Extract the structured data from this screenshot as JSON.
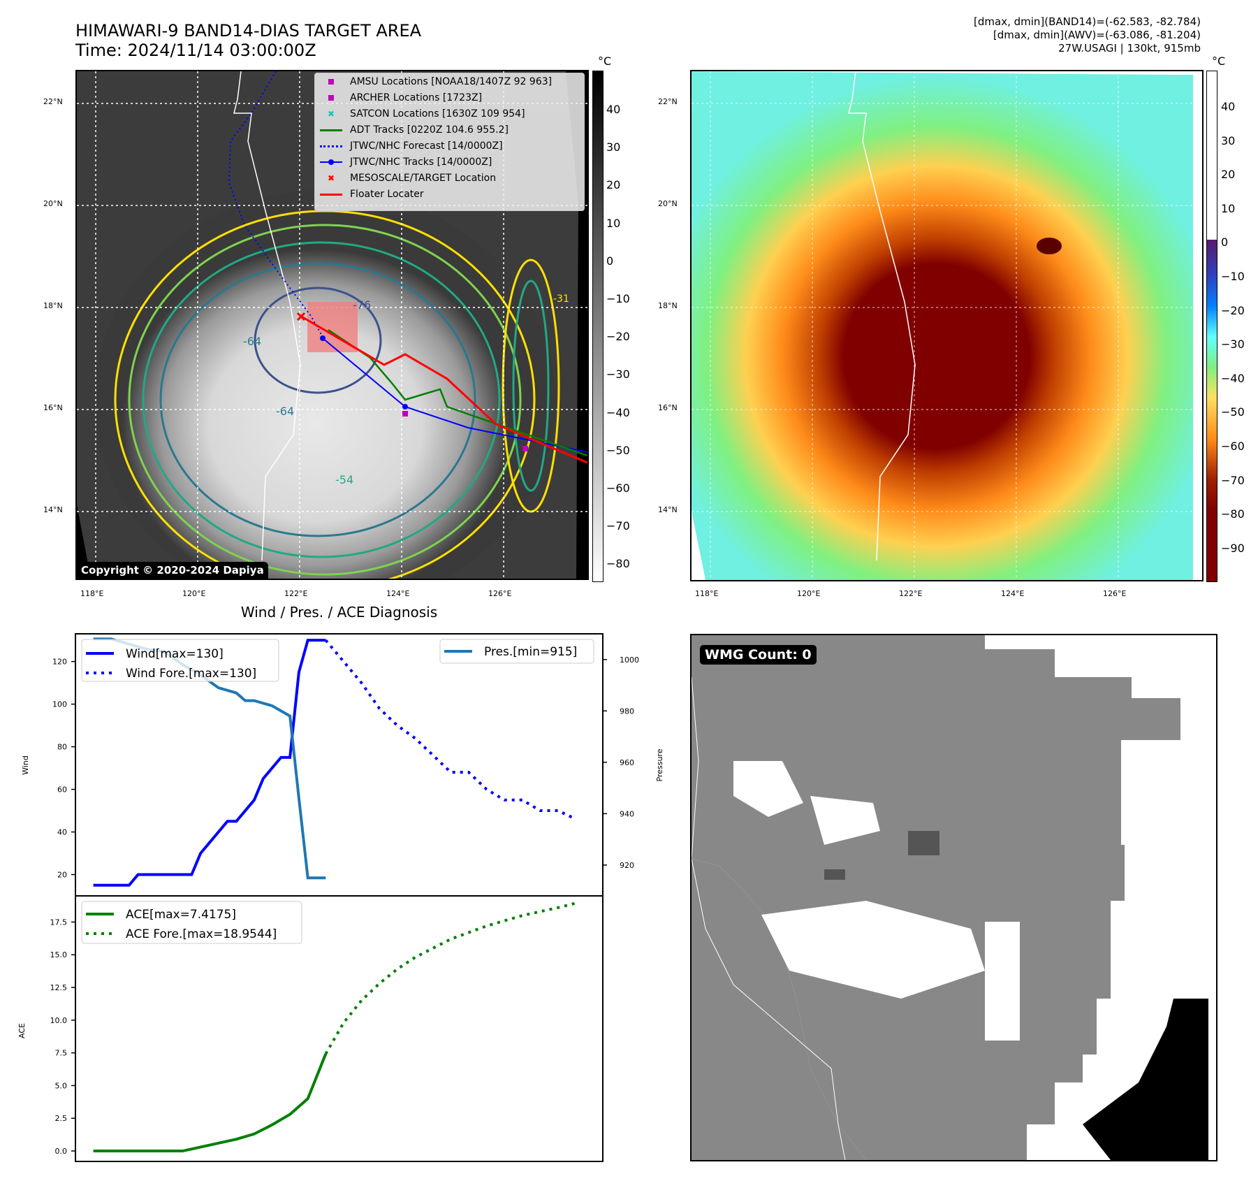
{
  "header": {
    "title_line1": "HIMAWARI-9 BAND14-DIAS TARGET AREA",
    "title_line2": "Time: 2024/11/14 03:00:00Z",
    "stats_line1": "[dmax, dmin](BAND14)=(-62.583, -82.784)",
    "stats_line2": "[dmax, dmin](AWV)=(-63.086, -81.204)",
    "stats_line3": "27W.USAGI | 130kt, 915mb"
  },
  "map_left": {
    "lat_ticks": [
      "22°N",
      "20°N",
      "18°N",
      "16°N",
      "14°N"
    ],
    "lon_ticks": [
      "118°E",
      "120°E",
      "122°E",
      "124°E",
      "126°E"
    ],
    "copyright": "Copyright © 2020-2024 Dapiya",
    "contour_labels": [
      "-64",
      "-76",
      "-64",
      "-54",
      "-31"
    ],
    "legend": [
      {
        "label": "AMSU Locations [NOAA18/1407Z 92 963]",
        "color": "#c000c0",
        "marker": "square"
      },
      {
        "label": "ARCHER Locations [1723Z]",
        "color": "#c000c0",
        "marker": "square"
      },
      {
        "label": "SATCON Locations [1630Z 109 954]",
        "color": "#20c0c0",
        "marker": "x"
      },
      {
        "label": "ADT Tracks [0220Z 104.6 955.2]",
        "color": "#008000",
        "marker": "line"
      },
      {
        "label": "JTWC/NHC Forecast [14/0000Z]",
        "color": "#0000ff",
        "marker": "dotted"
      },
      {
        "label": "JTWC/NHC Tracks [14/0000Z]",
        "color": "#0000ff",
        "marker": "line-dot"
      },
      {
        "label": "MESOSCALE/TARGET Location",
        "color": "#ff0000",
        "marker": "x"
      },
      {
        "label": "Floater Locater",
        "color": "#ff0000",
        "marker": "line"
      }
    ],
    "colorbar": {
      "unit": "°C",
      "ticks": [
        "40",
        "30",
        "20",
        "10",
        "0",
        "−10",
        "−20",
        "−30",
        "−40",
        "−50",
        "−60",
        "−70",
        "−80"
      ]
    }
  },
  "map_right": {
    "lat_ticks": [
      "22°N",
      "20°N",
      "18°N",
      "16°N",
      "14°N"
    ],
    "lon_ticks": [
      "118°E",
      "120°E",
      "122°E",
      "124°E",
      "126°E"
    ],
    "colorbar": {
      "unit": "°C",
      "ticks": [
        "40",
        "30",
        "20",
        "10",
        "0",
        "−10",
        "−20",
        "−30",
        "−40",
        "−50",
        "−60",
        "−70",
        "−80",
        "−90"
      ]
    }
  },
  "wmg": {
    "badge": "WMG Count: 0"
  },
  "chart_data": [
    {
      "type": "line",
      "title": "Wind / Pres. / ACE Diagnosis",
      "ylabel": "Wind",
      "y2label": "Pressure",
      "ylim": [
        10,
        133
      ],
      "y2lim": [
        908,
        1010
      ],
      "yticks": [
        "20",
        "40",
        "60",
        "80",
        "100",
        "120"
      ],
      "y2ticks": [
        "920",
        "940",
        "960",
        "980",
        "1000"
      ],
      "x": [
        0,
        1,
        2,
        3,
        4,
        5,
        6,
        7,
        8,
        9,
        10,
        11,
        12,
        13,
        14,
        15,
        16,
        17,
        18,
        19,
        20,
        21,
        22,
        23,
        24,
        25,
        26,
        27,
        28,
        29,
        30,
        31,
        32,
        33,
        34,
        35,
        36,
        37,
        38,
        39,
        40,
        41,
        42,
        43,
        44,
        45,
        46,
        47,
        48,
        49,
        50,
        51,
        52,
        53,
        54,
        55
      ],
      "series": [
        {
          "name": "Wind[max=130]",
          "axis": "left",
          "style": "solid",
          "color": "#0000ff",
          "x": [
            0,
            1,
            2,
            3,
            4,
            5,
            6,
            7,
            8,
            9,
            10,
            11,
            12,
            13,
            14,
            15,
            16,
            17,
            18,
            19,
            20,
            21,
            22,
            23,
            24,
            25,
            26
          ],
          "values": [
            15,
            15,
            15,
            15,
            15,
            20,
            20,
            20,
            20,
            20,
            20,
            20,
            30,
            35,
            40,
            45,
            45,
            50,
            55,
            65,
            70,
            75,
            75,
            115,
            130,
            130,
            130
          ]
        },
        {
          "name": "Wind Fore.[max=130]",
          "axis": "left",
          "style": "dotted",
          "color": "#0000ff",
          "x": [
            26,
            28,
            30,
            32,
            34,
            36,
            38,
            40,
            42,
            44,
            46,
            48,
            50,
            52,
            54
          ],
          "values": [
            130,
            120,
            110,
            98,
            90,
            84,
            76,
            68,
            68,
            60,
            55,
            55,
            50,
            50,
            46
          ]
        },
        {
          "name": "Pres.[min=915]",
          "axis": "right",
          "style": "solid",
          "color": "#1f77b4",
          "x": [
            0,
            2,
            4,
            6,
            8,
            10,
            12,
            14,
            16,
            17,
            18,
            20,
            22,
            23,
            24,
            25,
            26
          ],
          "values": [
            1008,
            1008,
            1006,
            1004,
            1003,
            998,
            994,
            989,
            987,
            984,
            984,
            982,
            978,
            946,
            915,
            915,
            915
          ]
        }
      ]
    },
    {
      "type": "line",
      "ylabel": "ACE",
      "ylim": [
        -0.8,
        19.5
      ],
      "yticks": [
        "0.0",
        "2.5",
        "5.0",
        "7.5",
        "10.0",
        "12.5",
        "15.0",
        "17.5"
      ],
      "series": [
        {
          "name": "ACE[max=7.4175]",
          "style": "solid",
          "color": "#008000",
          "x": [
            0,
            2,
            4,
            6,
            8,
            10,
            12,
            14,
            16,
            18,
            20,
            22,
            24,
            26
          ],
          "values": [
            0,
            0,
            0,
            0,
            0,
            0,
            0.3,
            0.6,
            0.9,
            1.3,
            2.0,
            2.8,
            4.0,
            7.42
          ]
        },
        {
          "name": "ACE Fore.[max=18.9544]",
          "style": "dotted",
          "color": "#008000",
          "x": [
            26,
            28,
            30,
            32,
            34,
            36,
            38,
            40,
            42,
            44,
            46,
            48,
            50,
            52,
            54
          ],
          "values": [
            7.42,
            9.8,
            11.5,
            12.8,
            13.9,
            14.8,
            15.5,
            16.2,
            16.7,
            17.2,
            17.6,
            18.0,
            18.3,
            18.6,
            18.95
          ]
        }
      ]
    }
  ]
}
